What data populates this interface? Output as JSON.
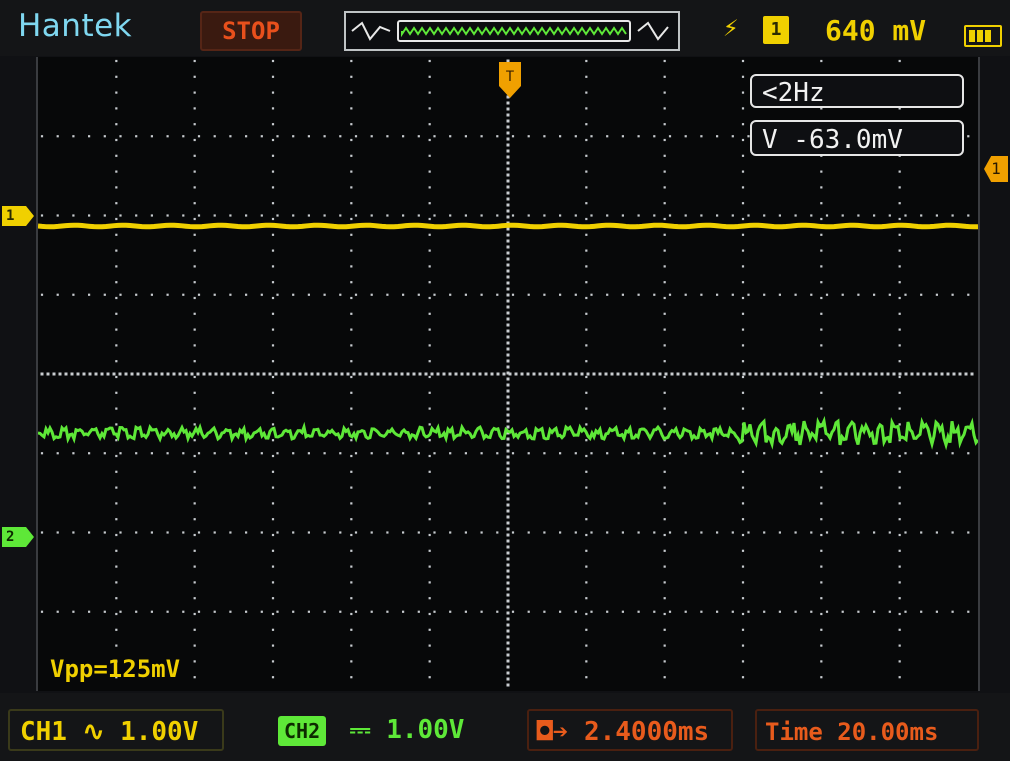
{
  "header": {
    "brand": "Hantek",
    "run_state": "STOP",
    "trigger_edge_icon": "lightning-bolt-icon",
    "trigger_source": "1",
    "trigger_level": "640 mV",
    "battery_icon": "battery-icon"
  },
  "measurements": {
    "frequency": "<2Hz",
    "cursor_voltage": "V -63.0mV",
    "vpp": "Vpp=125mV"
  },
  "markers": {
    "ch1": "1",
    "ch2": "2",
    "trigger_level_marker": "1"
  },
  "status_bar": {
    "ch1": {
      "label": "CH1",
      "coupling_icon": "ac-coupling-icon",
      "coupling_symbol": "∿",
      "scale": "1.00V"
    },
    "ch2": {
      "label": "CH2",
      "coupling_icon": "dc-coupling-icon",
      "coupling_symbol": "⎓",
      "scale": "1.00V"
    },
    "horizontal_position": {
      "icon": "trigger-position-icon",
      "symbol": "◘➔",
      "value": "2.4000ms"
    },
    "timebase": {
      "label": "Time",
      "value": "20.00ms"
    }
  },
  "colors": {
    "ch1": "#f0d000",
    "ch2": "#5ee838",
    "trigger": "#f0a000",
    "stop": "#e8501c",
    "brand": "#7fd7f0"
  }
}
